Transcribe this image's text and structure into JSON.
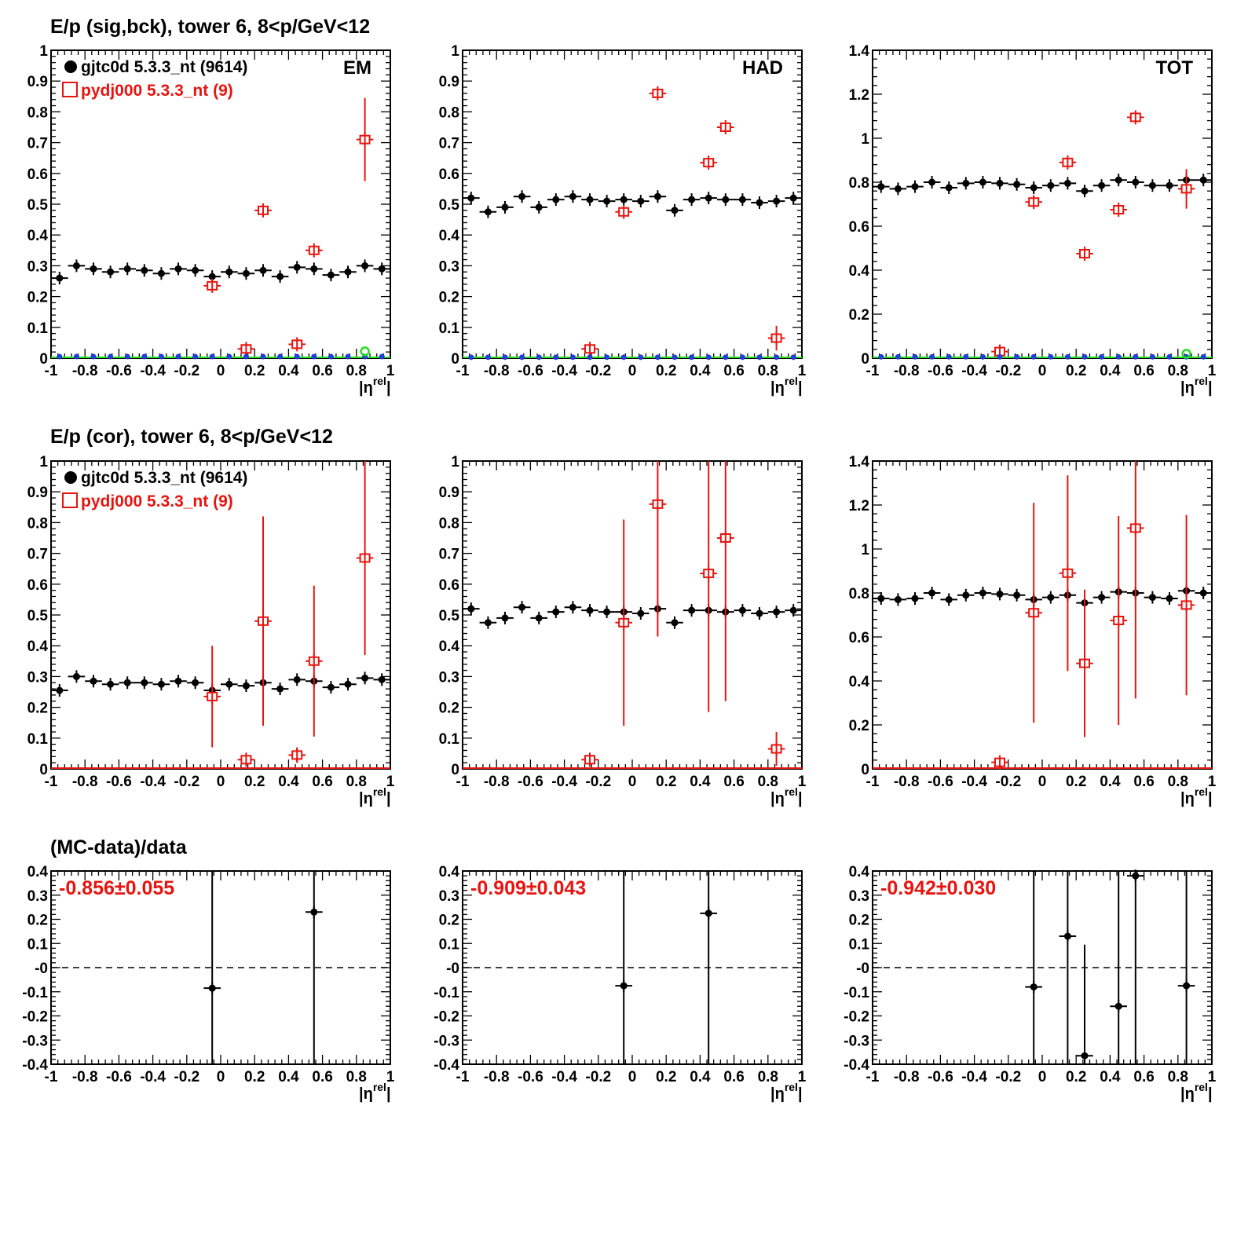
{
  "row_titles": [
    "E/p (sig,bck), tower 6,  8<p/GeV<12",
    "E/p (cor), tower 6,  8<p/GeV<12",
    "(MC-data)/data"
  ],
  "legend": {
    "data_label": "gjtc0d 5.3.3_nt (9614)",
    "mc_label": "pydj000 5.3.3_nt (9)"
  },
  "colors": {
    "data": "#000000",
    "mc": "#e8140f",
    "bck": "#1f3fd8",
    "bck_mc": "#22dd22",
    "ratio_text": "#e8140f"
  },
  "chart_data": [
    {
      "type": "scatter",
      "title": "",
      "panel_label": "EM",
      "xlabel": "|η^rel|",
      "ylim": [
        0,
        1
      ],
      "y_ticks": [
        "0",
        "0.1",
        "0.2",
        "0.3",
        "0.4",
        "0.5",
        "0.6",
        "0.7",
        "0.8",
        "0.9",
        "1"
      ],
      "x_ticks": [
        "-1",
        "-0.8",
        "-0.6",
        "-0.4",
        "-0.2",
        "0",
        "0.2",
        "0.4",
        "0.6",
        "0.8",
        "1"
      ],
      "series": [
        {
          "name": "gjtc0d 5.3.3_nt (9614)",
          "x": [
            -0.95,
            -0.85,
            -0.75,
            -0.65,
            -0.55,
            -0.45,
            -0.35,
            -0.25,
            -0.15,
            -0.05,
            0.05,
            0.15,
            0.25,
            0.35,
            0.45,
            0.55,
            0.65,
            0.75,
            0.85,
            0.95
          ],
          "y": [
            0.26,
            0.3,
            0.29,
            0.28,
            0.29,
            0.285,
            0.275,
            0.29,
            0.285,
            0.265,
            0.28,
            0.275,
            0.285,
            0.265,
            0.295,
            0.29,
            0.27,
            0.28,
            0.3,
            0.29
          ]
        },
        {
          "name": "pydj000 5.3.3_nt (9)",
          "x": [
            -0.05,
            0.15,
            0.25,
            0.45,
            0.55,
            0.85
          ],
          "y": [
            0.235,
            0.03,
            0.48,
            0.045,
            0.35,
            0.71
          ],
          "err": [
            0,
            0,
            0,
            0,
            0,
            0.135
          ]
        },
        {
          "bck_x": [
            -0.95,
            -0.85,
            -0.75,
            -0.65,
            -0.55,
            -0.45,
            -0.35,
            -0.25,
            -0.15,
            -0.05,
            0.05,
            0.15,
            0.25,
            0.35,
            0.45,
            0.55,
            0.65,
            0.75,
            0.85,
            0.95
          ],
          "bck_y": 0.005,
          "bck_mc_x": 0.85,
          "bck_mc_y": 0.022
        }
      ]
    },
    {
      "type": "scatter",
      "title": "",
      "panel_label": "HAD",
      "xlabel": "|η^rel|",
      "ylim": [
        0,
        1
      ],
      "y_ticks": [
        "0",
        "0.1",
        "0.2",
        "0.3",
        "0.4",
        "0.5",
        "0.6",
        "0.7",
        "0.8",
        "0.9",
        "1"
      ],
      "x_ticks": [
        "-1",
        "-0.8",
        "-0.6",
        "-0.4",
        "-0.2",
        "0",
        "0.2",
        "0.4",
        "0.6",
        "0.8",
        "1"
      ],
      "series": [
        {
          "name": "gjtc0d 5.3.3_nt (9614)",
          "x": [
            -0.95,
            -0.85,
            -0.75,
            -0.65,
            -0.55,
            -0.45,
            -0.35,
            -0.25,
            -0.15,
            -0.05,
            0.05,
            0.15,
            0.25,
            0.35,
            0.45,
            0.55,
            0.65,
            0.75,
            0.85,
            0.95
          ],
          "y": [
            0.52,
            0.475,
            0.49,
            0.525,
            0.49,
            0.515,
            0.525,
            0.515,
            0.51,
            0.515,
            0.51,
            0.525,
            0.48,
            0.515,
            0.52,
            0.515,
            0.515,
            0.505,
            0.51,
            0.52
          ]
        },
        {
          "name": "pydj000 5.3.3_nt (9)",
          "x": [
            -0.25,
            -0.05,
            0.15,
            0.45,
            0.55,
            0.85
          ],
          "y": [
            0.03,
            0.475,
            0.86,
            0.635,
            0.75,
            0.065
          ],
          "err": [
            0,
            0,
            0,
            0,
            0,
            0.04
          ]
        },
        {
          "bck_x": [
            -0.95,
            -0.85,
            -0.75,
            -0.65,
            -0.55,
            -0.45,
            -0.35,
            -0.25,
            -0.15,
            -0.05,
            0.05,
            0.15,
            0.25,
            0.35,
            0.45,
            0.55,
            0.65,
            0.75,
            0.85,
            0.95
          ],
          "bck_y": 0.003
        }
      ]
    },
    {
      "type": "scatter",
      "title": "",
      "panel_label": "TOT",
      "xlabel": "|η^rel|",
      "ylim": [
        0,
        1.4
      ],
      "y_ticks": [
        "0",
        "0.2",
        "0.4",
        "0.6",
        "0.8",
        "1",
        "1.2",
        "1.4"
      ],
      "x_ticks": [
        "-1",
        "-0.8",
        "-0.6",
        "-0.4",
        "-0.2",
        "0",
        "0.2",
        "0.4",
        "0.6",
        "0.8",
        "1"
      ],
      "series": [
        {
          "name": "gjtc0d 5.3.3_nt (9614)",
          "x": [
            -0.95,
            -0.85,
            -0.75,
            -0.65,
            -0.55,
            -0.45,
            -0.35,
            -0.25,
            -0.15,
            -0.05,
            0.05,
            0.15,
            0.25,
            0.35,
            0.45,
            0.55,
            0.65,
            0.75,
            0.85,
            0.95
          ],
          "y": [
            0.78,
            0.77,
            0.78,
            0.8,
            0.775,
            0.795,
            0.8,
            0.795,
            0.79,
            0.775,
            0.785,
            0.795,
            0.76,
            0.785,
            0.81,
            0.8,
            0.785,
            0.785,
            0.81,
            0.81
          ]
        },
        {
          "name": "pydj000 5.3.3_nt (9)",
          "x": [
            -0.25,
            -0.05,
            0.15,
            0.25,
            0.45,
            0.55,
            0.85
          ],
          "y": [
            0.03,
            0.71,
            0.89,
            0.475,
            0.675,
            1.095,
            0.77
          ],
          "err": [
            0,
            0,
            0,
            0,
            0,
            0,
            0.09
          ]
        },
        {
          "bck_x": [
            -0.95,
            -0.85,
            -0.75,
            -0.65,
            -0.55,
            -0.45,
            -0.35,
            -0.25,
            -0.15,
            -0.05,
            0.05,
            0.15,
            0.25,
            0.35,
            0.45,
            0.55,
            0.65,
            0.75,
            0.85,
            0.95
          ],
          "bck_y": 0.006,
          "bck_mc_x": 0.85,
          "bck_mc_y": 0.02
        }
      ]
    },
    {
      "type": "scatter",
      "title": "",
      "panel_label": "",
      "xlabel": "|η^rel|",
      "ylim": [
        0,
        1
      ],
      "y_ticks": [
        "0",
        "0.1",
        "0.2",
        "0.3",
        "0.4",
        "0.5",
        "0.6",
        "0.7",
        "0.8",
        "0.9",
        "1"
      ],
      "x_ticks": [
        "-1",
        "-0.8",
        "-0.6",
        "-0.4",
        "-0.2",
        "0",
        "0.2",
        "0.4",
        "0.6",
        "0.8",
        "1"
      ],
      "series": [
        {
          "name": "gjtc0d 5.3.3_nt (9614)",
          "x": [
            -0.95,
            -0.85,
            -0.75,
            -0.65,
            -0.55,
            -0.45,
            -0.35,
            -0.25,
            -0.15,
            -0.05,
            0.05,
            0.15,
            0.25,
            0.35,
            0.45,
            0.55,
            0.65,
            0.75,
            0.85,
            0.95
          ],
          "y": [
            0.255,
            0.3,
            0.285,
            0.275,
            0.28,
            0.28,
            0.275,
            0.285,
            0.28,
            0.255,
            0.275,
            0.27,
            0.28,
            0.26,
            0.29,
            0.285,
            0.265,
            0.275,
            0.295,
            0.29
          ]
        },
        {
          "name": "pydj000 5.3.3_nt (9)",
          "x": [
            -0.05,
            0.15,
            0.25,
            0.45,
            0.55,
            0.85
          ],
          "y": [
            0.235,
            0.03,
            0.48,
            0.045,
            0.35,
            0.685
          ],
          "err": [
            0.165,
            0,
            0.34,
            0.025,
            0.245,
            0.315
          ]
        }
      ]
    },
    {
      "type": "scatter",
      "title": "",
      "panel_label": "",
      "xlabel": "|η^rel|",
      "ylim": [
        0,
        1
      ],
      "y_ticks": [
        "0",
        "0.1",
        "0.2",
        "0.3",
        "0.4",
        "0.5",
        "0.6",
        "0.7",
        "0.8",
        "0.9",
        "1"
      ],
      "x_ticks": [
        "-1",
        "-0.8",
        "-0.6",
        "-0.4",
        "-0.2",
        "0",
        "0.2",
        "0.4",
        "0.6",
        "0.8",
        "1"
      ],
      "series": [
        {
          "name": "gjtc0d 5.3.3_nt (9614)",
          "x": [
            -0.95,
            -0.85,
            -0.75,
            -0.65,
            -0.55,
            -0.45,
            -0.35,
            -0.25,
            -0.15,
            -0.05,
            0.05,
            0.15,
            0.25,
            0.35,
            0.45,
            0.55,
            0.65,
            0.75,
            0.85,
            0.95
          ],
          "y": [
            0.52,
            0.475,
            0.49,
            0.525,
            0.49,
            0.51,
            0.525,
            0.515,
            0.51,
            0.51,
            0.505,
            0.52,
            0.475,
            0.515,
            0.515,
            0.51,
            0.515,
            0.505,
            0.51,
            0.515
          ]
        },
        {
          "name": "pydj000 5.3.3_nt (9)",
          "x": [
            -0.25,
            -0.05,
            0.15,
            0.45,
            0.55,
            0.85
          ],
          "y": [
            0.03,
            0.475,
            0.86,
            0.635,
            0.75,
            0.065
          ],
          "err": [
            0,
            0.335,
            0.43,
            0.45,
            0.53,
            0.055
          ]
        }
      ]
    },
    {
      "type": "scatter",
      "title": "",
      "panel_label": "",
      "xlabel": "|η^rel|",
      "ylim": [
        0,
        1.4
      ],
      "y_ticks": [
        "0",
        "0.2",
        "0.4",
        "0.6",
        "0.8",
        "1",
        "1.2",
        "1.4"
      ],
      "x_ticks": [
        "-1",
        "-0.8",
        "-0.6",
        "-0.4",
        "-0.2",
        "0",
        "0.2",
        "0.4",
        "0.6",
        "0.8",
        "1"
      ],
      "series": [
        {
          "name": "gjtc0d 5.3.3_nt (9614)",
          "x": [
            -0.95,
            -0.85,
            -0.75,
            -0.65,
            -0.55,
            -0.45,
            -0.35,
            -0.25,
            -0.15,
            -0.05,
            0.05,
            0.15,
            0.25,
            0.35,
            0.45,
            0.55,
            0.65,
            0.75,
            0.85,
            0.95
          ],
          "y": [
            0.775,
            0.77,
            0.775,
            0.8,
            0.77,
            0.79,
            0.8,
            0.795,
            0.79,
            0.77,
            0.78,
            0.79,
            0.755,
            0.78,
            0.805,
            0.8,
            0.78,
            0.775,
            0.81,
            0.8
          ]
        },
        {
          "name": "pydj000 5.3.3_nt (9)",
          "x": [
            -0.25,
            -0.05,
            0.15,
            0.25,
            0.45,
            0.55,
            0.85
          ],
          "y": [
            0.03,
            0.71,
            0.89,
            0.48,
            0.675,
            1.095,
            0.745
          ],
          "err": [
            0,
            0.5,
            0.445,
            0.335,
            0.475,
            0.775,
            0.41
          ]
        }
      ]
    },
    {
      "type": "scatter",
      "title": "",
      "panel_label": "",
      "xlabel": "|η^rel|",
      "ylim": [
        -0.4,
        0.4
      ],
      "y_ticks": [
        "-0.4",
        "-0.3",
        "-0.2",
        "-0.1",
        "-0",
        "0.1",
        "0.2",
        "0.3",
        "0.4"
      ],
      "x_ticks": [
        "-1",
        "-0.8",
        "-0.6",
        "-0.4",
        "-0.2",
        "0",
        "0.2",
        "0.4",
        "0.6",
        "0.8",
        "1"
      ],
      "ratio_label": "-0.856±0.055",
      "series": [
        {
          "name": "",
          "x": [
            -0.05,
            0.55
          ],
          "y": [
            -0.085,
            0.23
          ],
          "err": [
            1.0,
            1.0
          ]
        }
      ]
    },
    {
      "type": "scatter",
      "title": "",
      "panel_label": "",
      "xlabel": "|η^rel|",
      "ylim": [
        -0.4,
        0.4
      ],
      "y_ticks": [
        "-0.4",
        "-0.3",
        "-0.2",
        "-0.1",
        "-0",
        "0.1",
        "0.2",
        "0.3",
        "0.4"
      ],
      "x_ticks": [
        "-1",
        "-0.8",
        "-0.6",
        "-0.4",
        "-0.2",
        "0",
        "0.2",
        "0.4",
        "0.6",
        "0.8",
        "1"
      ],
      "ratio_label": "-0.909±0.043",
      "series": [
        {
          "name": "",
          "x": [
            -0.05,
            0.45
          ],
          "y": [
            -0.075,
            0.225
          ],
          "err": [
            1.0,
            1.0
          ]
        }
      ]
    },
    {
      "type": "scatter",
      "title": "",
      "panel_label": "",
      "xlabel": "|η^rel|",
      "ylim": [
        -0.4,
        0.4
      ],
      "y_ticks": [
        "-0.4",
        "-0.3",
        "-0.2",
        "-0.1",
        "-0",
        "0.1",
        "0.2",
        "0.3",
        "0.4"
      ],
      "x_ticks": [
        "-1",
        "-0.8",
        "-0.6",
        "-0.4",
        "-0.2",
        "0",
        "0.2",
        "0.4",
        "0.6",
        "0.8",
        "1"
      ],
      "ratio_label": "-0.942±0.030",
      "series": [
        {
          "name": "",
          "x": [
            -0.05,
            0.15,
            0.25,
            0.45,
            0.55,
            0.85
          ],
          "y": [
            -0.08,
            0.13,
            -0.365,
            -0.16,
            0.38,
            -0.075
          ],
          "err": [
            1.0,
            1.0,
            0.46,
            1.0,
            1.0,
            1.0
          ]
        }
      ]
    }
  ]
}
